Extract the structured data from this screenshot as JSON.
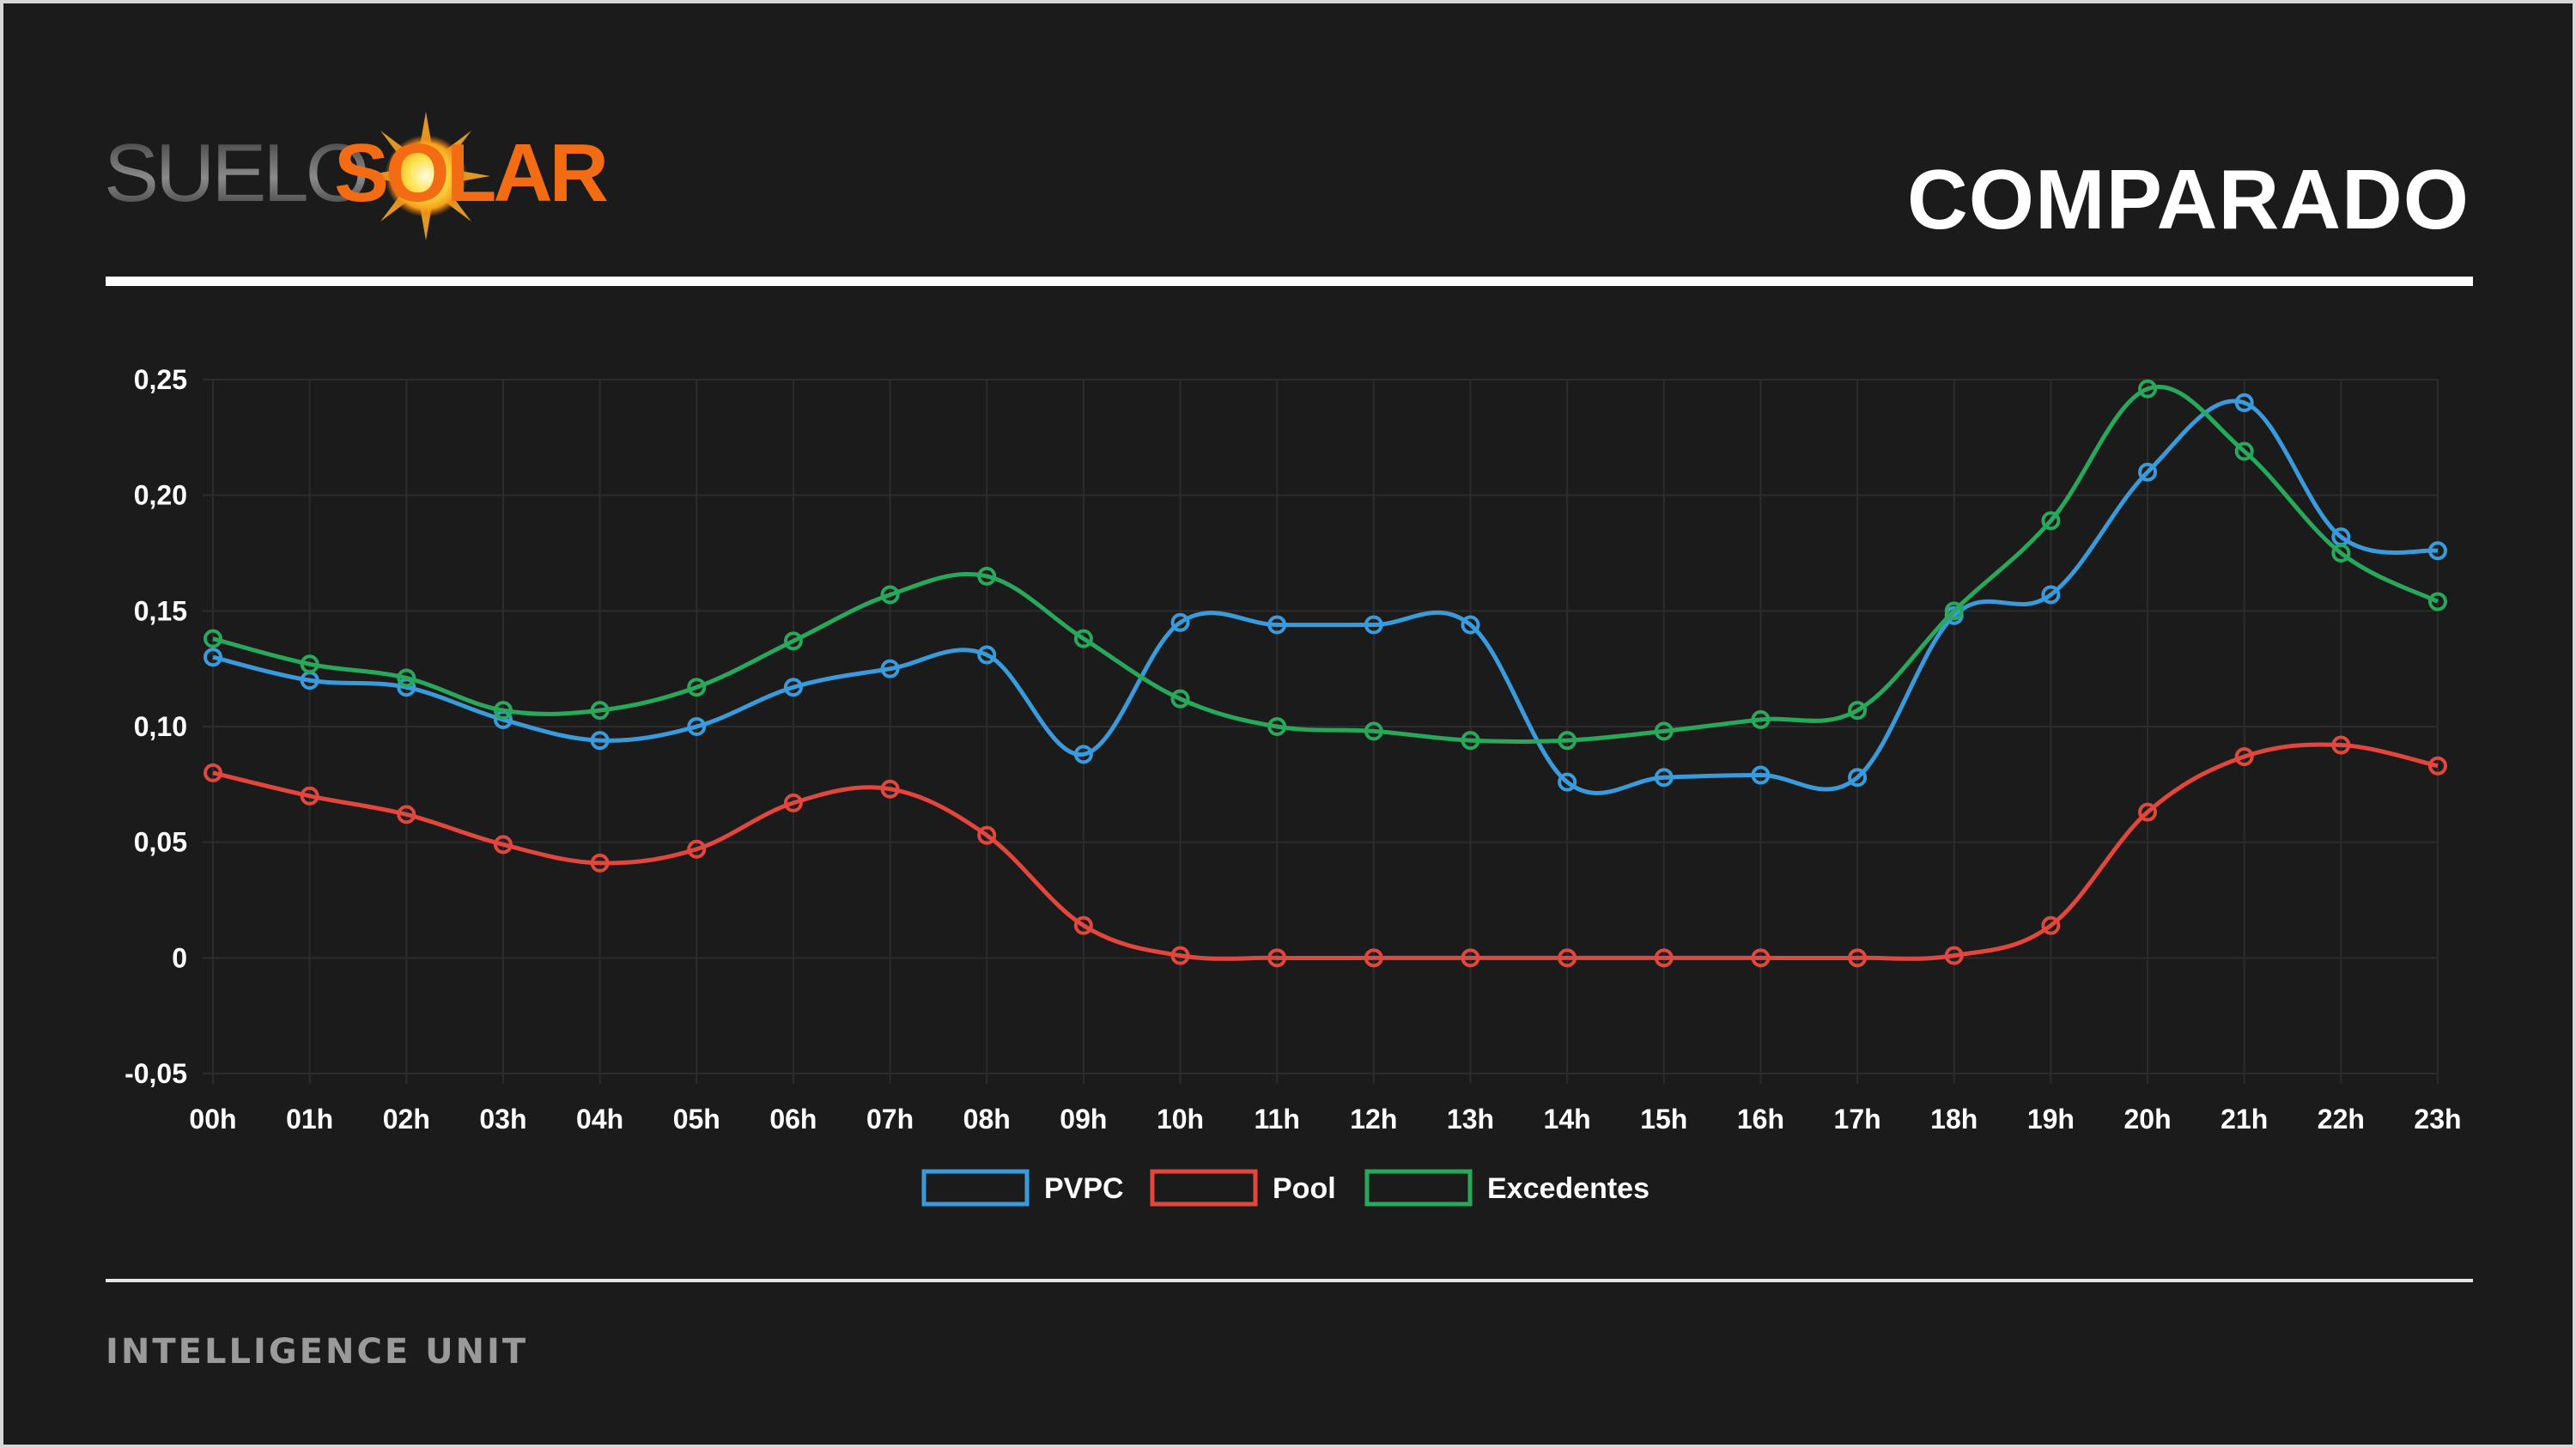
{
  "header": {
    "logo_part1": "SUELO",
    "logo_part2": "SOLAR",
    "title": "COMPARADO"
  },
  "footer": {
    "text": "INTELLIGENCE UNIT"
  },
  "colors": {
    "background": "#1b1b1b",
    "pvpc": "#3a9bdc",
    "pool": "#e2463d",
    "excedentes": "#27a85a",
    "logo_orange": "#f36b12"
  },
  "chart_data": {
    "type": "line",
    "title": "",
    "xlabel": "",
    "ylabel": "",
    "categories": [
      "00h",
      "01h",
      "02h",
      "03h",
      "04h",
      "05h",
      "06h",
      "07h",
      "08h",
      "09h",
      "10h",
      "11h",
      "12h",
      "13h",
      "14h",
      "15h",
      "16h",
      "17h",
      "18h",
      "19h",
      "20h",
      "21h",
      "22h",
      "23h"
    ],
    "ylim": [
      -0.05,
      0.25
    ],
    "yticks": [
      -0.05,
      0,
      0.05,
      0.1,
      0.15,
      0.2,
      0.25
    ],
    "ytick_labels": [
      "-0,05",
      "0",
      "0,05",
      "0,10",
      "0,15",
      "0,20",
      "0,25"
    ],
    "grid": true,
    "legend_position": "bottom",
    "series": [
      {
        "name": "PVPC",
        "color": "#3a9bdc",
        "values": [
          0.13,
          0.12,
          0.117,
          0.103,
          0.094,
          0.1,
          0.117,
          0.125,
          0.131,
          0.088,
          0.145,
          0.144,
          0.144,
          0.144,
          0.076,
          0.078,
          0.079,
          0.078,
          0.148,
          0.157,
          0.21,
          0.24,
          0.182,
          0.176
        ]
      },
      {
        "name": "Pool",
        "color": "#e2463d",
        "values": [
          0.08,
          0.07,
          0.062,
          0.049,
          0.041,
          0.047,
          0.067,
          0.073,
          0.053,
          0.014,
          0.001,
          0.0,
          0.0,
          0.0,
          0.0,
          0.0,
          0.0,
          0.0,
          0.001,
          0.014,
          0.063,
          0.087,
          0.092,
          0.083
        ]
      },
      {
        "name": "Excedentes",
        "color": "#27a85a",
        "values": [
          0.138,
          0.127,
          0.121,
          0.107,
          0.107,
          0.117,
          0.137,
          0.157,
          0.165,
          0.138,
          0.112,
          0.1,
          0.098,
          0.094,
          0.094,
          0.098,
          0.103,
          0.107,
          0.15,
          0.189,
          0.246,
          0.219,
          0.175,
          0.154
        ]
      }
    ]
  }
}
